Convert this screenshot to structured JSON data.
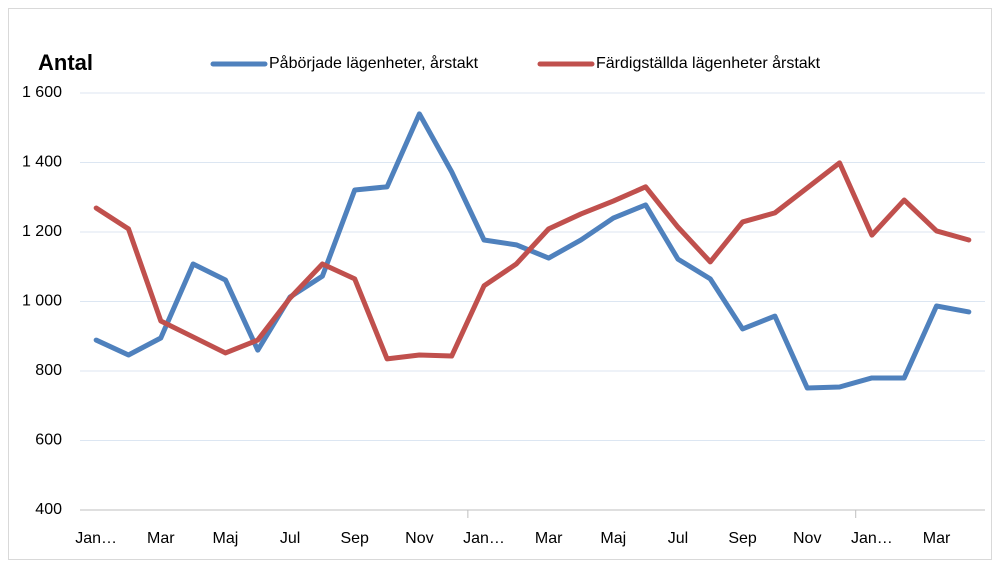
{
  "chart_data": {
    "type": "line",
    "title": "Antal",
    "categories": [
      "Jan…",
      null,
      "Mar",
      null,
      "Maj",
      null,
      "Jul",
      null,
      "Sep",
      null,
      "Nov",
      null,
      "Jan…",
      null,
      "Mar",
      null,
      "Maj",
      null,
      "Jul",
      null,
      "Sep",
      null,
      "Nov",
      null,
      "Jan…",
      null,
      "Mar",
      null
    ],
    "series": [
      {
        "name": "Påbörjade lägenheter, årstakt",
        "color": "#4f81bd",
        "values": [
          889,
          846,
          895,
          1108,
          1062,
          860,
          1013,
          1073,
          1321,
          1330,
          1540,
          1373,
          1177,
          1163,
          1125,
          1177,
          1240,
          1278,
          1122,
          1065,
          921,
          958,
          751,
          754,
          780,
          780,
          987,
          970
        ]
      },
      {
        "name": "Färdigställda lägenheter årstakt",
        "color": "#c0504d",
        "values": [
          1269,
          1209,
          944,
          898,
          852,
          889,
          1010,
          1108,
          1065,
          835,
          846,
          843,
          1045,
          1108,
          1209,
          1252,
          1289,
          1330,
          1214,
          1114,
          1229,
          1255,
          1327,
          1399,
          1191,
          1292,
          1203,
          1177
        ]
      }
    ],
    "ylim": [
      400,
      1600
    ],
    "yticks": [
      400,
      600,
      800,
      {
        "value": 1000,
        "label": "1 000"
      },
      {
        "value": 1200,
        "label": "1 200"
      },
      {
        "value": 1400,
        "label": "1 400"
      },
      {
        "value": 1600,
        "label": "1 600"
      }
    ],
    "grid": true,
    "legend": "top"
  }
}
